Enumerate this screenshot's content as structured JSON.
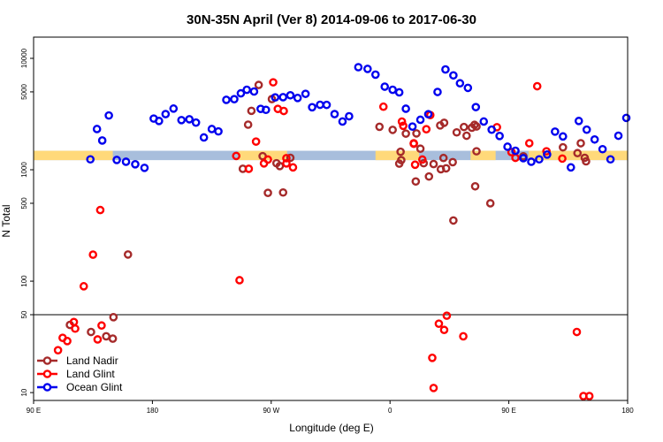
{
  "chart_data": {
    "type": "scatter",
    "title": "30N-35N April (Ver 8)   2014-09-06 to 2017-06-30",
    "xlabel": "Longitude (deg E)",
    "ylabel": "N Total",
    "y_scale": "log",
    "xlim": [
      90,
      540
    ],
    "ylim": [
      8.5,
      15500
    ],
    "x_ticks": [
      {
        "value": 90,
        "label": "90 E"
      },
      {
        "value": 180,
        "label": "180"
      },
      {
        "value": 270,
        "label": "90 W"
      },
      {
        "value": 360,
        "label": "0"
      },
      {
        "value": 450,
        "label": "90 E"
      },
      {
        "value": 540,
        "label": "180"
      }
    ],
    "y_ticks": [
      {
        "value": 10,
        "label": "10"
      },
      {
        "value": 50,
        "label": "50"
      },
      {
        "value": 100,
        "label": "100"
      },
      {
        "value": 500,
        "label": "500"
      },
      {
        "value": 1000,
        "label": "1000"
      },
      {
        "value": 5000,
        "label": "5000"
      },
      {
        "value": 10000,
        "label": "10000"
      }
    ],
    "reference_line": 50,
    "grid": false,
    "legend": {
      "position": "bottom-left"
    },
    "band": {
      "y_range": [
        1220,
        1480
      ],
      "colors": {
        "ocean": "#a8bedc",
        "land": "#ffd97a"
      },
      "land_ranges": [
        [
          90,
          150
        ],
        [
          245,
          282
        ],
        [
          349,
          382
        ],
        [
          421,
          440
        ],
        [
          465,
          540
        ]
      ]
    },
    "series": [
      {
        "name": "Land Nadir",
        "color": "#a52a2a",
        "x": [
          117.5,
          133.5,
          150,
          145,
          150.5,
          161.5,
          408,
          436,
          367,
          379.5,
          424.5,
          402.5,
          389.5,
          407.5,
          398.5,
          385.5,
          425.5,
          372,
          398,
          393,
          380,
          383,
          401,
          410.5,
          416,
          422,
          425.5,
          424,
          248.5,
          252.5,
          255,
          260.5,
          263.5,
          267.5,
          270.5,
          274,
          276.5,
          279,
          284.5,
          508.5,
          491,
          502,
          504.5,
          507.5,
          461,
          352,
          362,
          368.5,
          368,
          400.5,
          418
        ],
        "y": [
          40.5,
          35,
          30.5,
          32,
          47.5,
          173.5,
          350.5,
          500,
          1135,
          785,
          710,
          1030,
          870,
          1170,
          1010,
          1145,
          1465,
          2110,
          2500,
          1125,
          2120,
          1545,
          2640,
          2165,
          2420,
          2385,
          2445,
          2530,
          1020,
          2540,
          3380,
          5770,
          1325,
          620,
          4310,
          1145,
          1080,
          625,
          1280,
          1190,
          1590,
          1410,
          1730,
          1280,
          1320,
          2430,
          2280,
          1220,
          1450,
          1275,
          2020
        ]
      },
      {
        "name": "Land Glint",
        "color": "#ff0000",
        "x": [
          108.5,
          121.5,
          128,
          135,
          140.5,
          141.5,
          138.5,
          112,
          115.5,
          120.5,
          246,
          243.5,
          253,
          258.5,
          264.5,
          267.5,
          271.5,
          275,
          279.5,
          281.5,
          281.5,
          286.5,
          415.5,
          403,
          397,
          401,
          392,
          393,
          379,
          384.5,
          370,
          355,
          378,
          378,
          369,
          387.5,
          390.5,
          441,
          455,
          452,
          465.5,
          471.5,
          478.5,
          490.5,
          506.5,
          511,
          501.5
        ],
        "y": [
          24,
          37.5,
          90,
          173,
          435,
          40,
          30,
          31,
          29,
          43,
          102,
          1330,
          1020,
          1790,
          1140,
          1235,
          6090,
          3520,
          3370,
          1270,
          1140,
          1050,
          32,
          49,
          41.5,
          36.5,
          20.5,
          11,
          1110,
          1235,
          2480,
          3680,
          1730,
          1710,
          2705,
          2310,
          3095,
          2410,
          1280,
          1440,
          1730,
          5620,
          1465,
          1260,
          9.3,
          9.3,
          35
        ]
      },
      {
        "name": "Ocean Glint",
        "color": "#0000ee",
        "x": [
          133,
          138,
          142,
          147,
          153,
          160,
          167,
          174,
          181,
          185,
          190,
          196,
          202,
          208,
          213,
          219,
          225,
          230,
          236,
          242,
          247,
          251.5,
          257,
          262,
          266,
          273,
          279,
          284.5,
          290,
          296,
          301,
          307,
          312,
          318,
          324,
          329,
          336,
          343,
          349,
          356,
          362,
          367,
          372,
          377,
          383,
          389,
          396,
          402,
          408,
          413,
          419,
          425,
          431,
          437,
          443,
          449,
          455,
          461,
          467,
          473,
          479,
          485,
          491,
          497,
          503,
          509,
          515,
          521,
          527,
          533,
          539
        ],
        "y": [
          1240,
          2320,
          1830,
          3070,
          1225,
          1180,
          1120,
          1040,
          2880,
          2740,
          3160,
          3540,
          2790,
          2840,
          2650,
          1950,
          2320,
          2210,
          4240,
          4300,
          4850,
          5220,
          5040,
          3520,
          3450,
          4460,
          4480,
          4660,
          4410,
          4800,
          3640,
          3830,
          3820,
          3160,
          2710,
          3020,
          8330,
          8040,
          7140,
          5570,
          5220,
          4950,
          3530,
          2440,
          2810,
          3150,
          4990,
          7950,
          7030,
          5970,
          5430,
          3650,
          2710,
          2290,
          2010,
          1610,
          1480,
          1270,
          1180,
          1240,
          1370,
          2200,
          1990,
          1050,
          2740,
          2290,
          1870,
          1530,
          1240,
          2020,
          2920
        ]
      }
    ]
  }
}
